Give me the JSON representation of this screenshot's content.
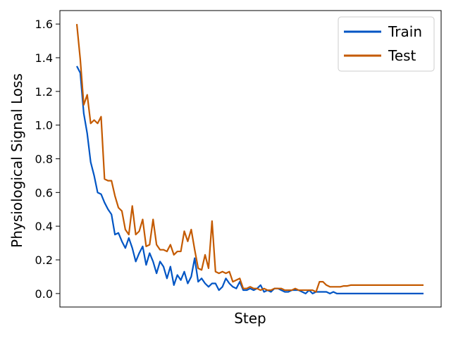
{
  "chart_data": {
    "type": "line",
    "title": "",
    "xlabel": "Step",
    "ylabel": "Physiological Signal Loss",
    "ylim": [
      -0.08,
      1.68
    ],
    "y_ticks": [
      0.0,
      0.2,
      0.4,
      0.6,
      0.8,
      1.0,
      1.2,
      1.4,
      1.6
    ],
    "y_tick_labels": [
      "0.0",
      "0.2",
      "0.4",
      "0.6",
      "0.8",
      "1.0",
      "1.2",
      "1.4",
      "1.6"
    ],
    "x_ticks_visible": false,
    "grid": false,
    "legend": "top-right",
    "series": [
      {
        "name": "Train",
        "color": "#0055c4",
        "values": [
          1.35,
          1.31,
          1.07,
          0.95,
          0.78,
          0.7,
          0.6,
          0.59,
          0.54,
          0.5,
          0.47,
          0.35,
          0.36,
          0.31,
          0.27,
          0.33,
          0.27,
          0.19,
          0.24,
          0.28,
          0.17,
          0.24,
          0.19,
          0.12,
          0.19,
          0.16,
          0.09,
          0.16,
          0.05,
          0.11,
          0.08,
          0.13,
          0.06,
          0.1,
          0.21,
          0.07,
          0.09,
          0.06,
          0.04,
          0.06,
          0.06,
          0.02,
          0.04,
          0.09,
          0.06,
          0.04,
          0.03,
          0.07,
          0.02,
          0.02,
          0.03,
          0.02,
          0.03,
          0.05,
          0.01,
          0.02,
          0.01,
          0.03,
          0.03,
          0.02,
          0.01,
          0.01,
          0.02,
          0.02,
          0.02,
          0.01,
          0.0,
          0.02,
          0.0,
          0.01,
          0.01,
          0.01,
          0.01,
          0.0,
          0.01,
          0.0,
          0.0,
          0.0,
          0.0,
          0.0,
          0.0,
          0.0,
          0.0,
          0.0,
          0.0,
          0.0,
          0.0,
          0.0,
          0.0,
          0.0,
          0.0,
          0.0,
          0.0,
          0.0,
          0.0,
          0.0,
          0.0,
          0.0,
          0.0,
          0.0,
          0.0
        ]
      },
      {
        "name": "Test",
        "color": "#c45a00",
        "values": [
          1.6,
          1.39,
          1.12,
          1.18,
          1.01,
          1.03,
          1.01,
          1.05,
          0.68,
          0.67,
          0.67,
          0.58,
          0.51,
          0.49,
          0.38,
          0.35,
          0.52,
          0.35,
          0.37,
          0.44,
          0.28,
          0.29,
          0.44,
          0.29,
          0.26,
          0.26,
          0.25,
          0.29,
          0.23,
          0.25,
          0.25,
          0.37,
          0.31,
          0.38,
          0.26,
          0.15,
          0.14,
          0.23,
          0.15,
          0.43,
          0.13,
          0.12,
          0.13,
          0.12,
          0.13,
          0.07,
          0.08,
          0.09,
          0.03,
          0.03,
          0.04,
          0.03,
          0.03,
          0.02,
          0.03,
          0.02,
          0.02,
          0.03,
          0.03,
          0.03,
          0.02,
          0.02,
          0.02,
          0.03,
          0.02,
          0.02,
          0.02,
          0.02,
          0.02,
          0.01,
          0.07,
          0.07,
          0.05,
          0.04,
          0.04,
          0.04,
          0.04,
          0.045,
          0.045,
          0.05,
          0.05,
          0.05,
          0.05,
          0.05,
          0.05,
          0.05,
          0.05,
          0.05,
          0.05,
          0.05,
          0.05,
          0.05,
          0.05,
          0.05,
          0.05,
          0.05,
          0.05,
          0.05,
          0.05,
          0.05,
          0.05
        ]
      }
    ]
  }
}
